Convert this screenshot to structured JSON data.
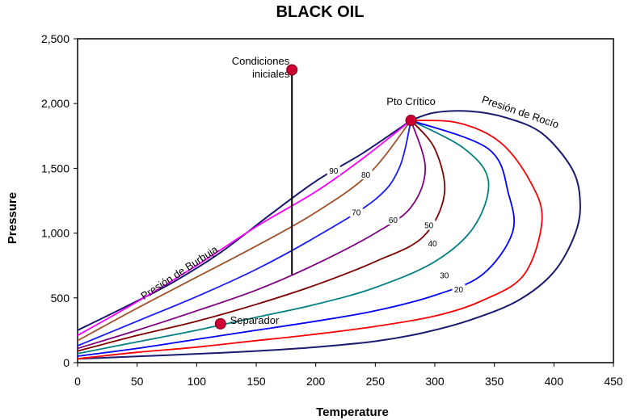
{
  "chart_data": {
    "type": "line",
    "title": "BLACK OIL",
    "xlabel": "Temperature",
    "ylabel": "Pressure",
    "xlim": [
      0,
      450
    ],
    "ylim": [
      0,
      2500
    ],
    "xticks": [
      "0",
      "50",
      "100",
      "150",
      "200",
      "250",
      "300",
      "350",
      "400",
      "450"
    ],
    "yticks": [
      "0",
      "500",
      "1,000",
      "1,500",
      "2,000",
      "2,500"
    ],
    "grid": false,
    "envelope": {
      "bubble_point_label": "Presión de Burbuja",
      "dew_point_label": "Presión de Rocío",
      "color": "#1a1a6e",
      "bubble": [
        [
          0,
          250
        ],
        [
          40,
          430
        ],
        [
          80,
          620
        ],
        [
          120,
          850
        ],
        [
          160,
          1130
        ],
        [
          200,
          1400
        ],
        [
          240,
          1620
        ],
        [
          280,
          1870
        ]
      ],
      "dew": [
        [
          280,
          1870
        ],
        [
          300,
          1930
        ],
        [
          330,
          1940
        ],
        [
          360,
          1890
        ],
        [
          390,
          1770
        ],
        [
          415,
          1500
        ],
        [
          422,
          1250
        ],
        [
          418,
          1000
        ],
        [
          400,
          700
        ],
        [
          370,
          480
        ],
        [
          330,
          330
        ],
        [
          290,
          230
        ],
        [
          250,
          165
        ],
        [
          200,
          120
        ],
        [
          150,
          90
        ],
        [
          100,
          68
        ],
        [
          50,
          48
        ],
        [
          0,
          30
        ]
      ]
    },
    "quality_lines": [
      {
        "name": "90",
        "color": "#ff00ff",
        "points": [
          [
            0,
            210
          ],
          [
            50,
            470
          ],
          [
            100,
            750
          ],
          [
            150,
            1050
          ],
          [
            200,
            1320
          ],
          [
            240,
            1580
          ],
          [
            280,
            1870
          ]
        ]
      },
      {
        "name": "80",
        "color": "#a0522d",
        "points": [
          [
            0,
            170
          ],
          [
            50,
            420
          ],
          [
            100,
            660
          ],
          [
            150,
            900
          ],
          [
            200,
            1160
          ],
          [
            245,
            1460
          ],
          [
            280,
            1870
          ]
        ]
      },
      {
        "name": "70",
        "color": "#1a1aff",
        "points": [
          [
            0,
            130
          ],
          [
            50,
            320
          ],
          [
            100,
            510
          ],
          [
            150,
            720
          ],
          [
            200,
            970
          ],
          [
            250,
            1260
          ],
          [
            270,
            1500
          ],
          [
            280,
            1870
          ]
        ]
      },
      {
        "name": "60",
        "color": "#800080",
        "points": [
          [
            0,
            110
          ],
          [
            50,
            250
          ],
          [
            100,
            400
          ],
          [
            150,
            560
          ],
          [
            200,
            760
          ],
          [
            250,
            1000
          ],
          [
            280,
            1200
          ],
          [
            292,
            1500
          ],
          [
            280,
            1870
          ]
        ]
      },
      {
        "name": "50",
        "color": "#800000",
        "points": [
          [
            0,
            90
          ],
          [
            50,
            210
          ],
          [
            100,
            320
          ],
          [
            150,
            450
          ],
          [
            200,
            600
          ],
          [
            250,
            780
          ],
          [
            290,
            970
          ],
          [
            308,
            1300
          ],
          [
            300,
            1650
          ],
          [
            280,
            1870
          ]
        ]
      },
      {
        "name": "40",
        "color": "#008080",
        "points": [
          [
            0,
            70
          ],
          [
            50,
            160
          ],
          [
            100,
            250
          ],
          [
            150,
            350
          ],
          [
            200,
            450
          ],
          [
            250,
            580
          ],
          [
            300,
            780
          ],
          [
            333,
            1050
          ],
          [
            345,
            1400
          ],
          [
            325,
            1650
          ],
          [
            280,
            1870
          ]
        ]
      },
      {
        "name": "30",
        "color": "#0000ff",
        "points": [
          [
            0,
            50
          ],
          [
            50,
            110
          ],
          [
            100,
            180
          ],
          [
            150,
            250
          ],
          [
            200,
            320
          ],
          [
            250,
            400
          ],
          [
            300,
            520
          ],
          [
            340,
            680
          ],
          [
            365,
            1000
          ],
          [
            362,
            1300
          ],
          [
            345,
            1650
          ],
          [
            280,
            1870
          ]
        ]
      },
      {
        "name": "20",
        "color": "#ff0000",
        "points": [
          [
            0,
            30
          ],
          [
            50,
            80
          ],
          [
            100,
            120
          ],
          [
            150,
            170
          ],
          [
            200,
            220
          ],
          [
            250,
            280
          ],
          [
            300,
            360
          ],
          [
            340,
            480
          ],
          [
            375,
            680
          ],
          [
            390,
            1100
          ],
          [
            380,
            1400
          ],
          [
            355,
            1700
          ],
          [
            320,
            1850
          ],
          [
            280,
            1870
          ]
        ]
      }
    ],
    "quality_label_positions": {
      "90": [
        215,
        1470
      ],
      "80": [
        242,
        1440
      ],
      "70": [
        234,
        1150
      ],
      "60": [
        265,
        1090
      ],
      "50": [
        295,
        1050
      ],
      "40": [
        298,
        910
      ],
      "30": [
        308,
        665
      ],
      "20": [
        320,
        555
      ]
    },
    "annotations": [
      {
        "text": "Condiciones",
        "x": 178,
        "y": 2300
      },
      {
        "text": "iniciales",
        "x": 178,
        "y": 2200
      },
      {
        "text": "Pto Crítico",
        "x": 280,
        "y": 1990
      },
      {
        "text": "Separador",
        "x": 128,
        "y": 300
      }
    ],
    "markers": [
      {
        "name": "Condiciones iniciales",
        "x": 180,
        "y": 2260
      },
      {
        "name": "Pto Crítico",
        "x": 280,
        "y": 1870
      },
      {
        "name": "Separador",
        "x": 120,
        "y": 300
      }
    ],
    "vertical_path": {
      "x": 180,
      "y_from": 2260,
      "y_to": 680
    }
  }
}
